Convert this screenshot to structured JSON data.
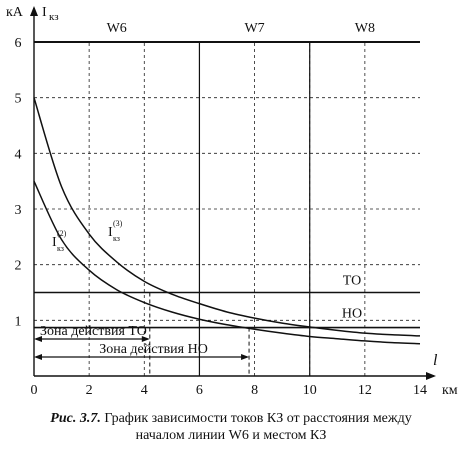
{
  "caption": {
    "figure": "Рис. 3.7.",
    "text": "График зависимости токов КЗ от расстояния между",
    "text2": "началом линии W6 и местом КЗ"
  },
  "chart_data": {
    "type": "line",
    "x_unit": "км",
    "x_symbol": "l",
    "y_unit": "кА",
    "y_symbol": "I",
    "y_symbol_sub": "кз",
    "xlim": [
      0,
      14
    ],
    "ylim": [
      0,
      6
    ],
    "xticks": [
      0,
      2,
      4,
      6,
      8,
      10,
      12,
      14
    ],
    "yticks": [
      1,
      2,
      3,
      4,
      5,
      6
    ],
    "grid": true,
    "segments": [
      {
        "name": "W6",
        "from": 0,
        "to": 6
      },
      {
        "name": "W7",
        "from": 6,
        "to": 10
      },
      {
        "name": "W8",
        "from": 10,
        "to": 14
      }
    ],
    "series": [
      {
        "name": "I",
        "name_sub": "кз",
        "name_sup": "(3)",
        "x": [
          0,
          1,
          2,
          3,
          4,
          5,
          6,
          7,
          8,
          9,
          10,
          11,
          12,
          13,
          14
        ],
        "y": [
          5.0,
          3.4,
          2.55,
          2.05,
          1.7,
          1.47,
          1.3,
          1.15,
          1.04,
          0.95,
          0.88,
          0.82,
          0.77,
          0.74,
          0.72
        ]
      },
      {
        "name": "I",
        "name_sub": "кз",
        "name_sup": "(2)",
        "x": [
          0,
          1,
          2,
          3,
          4,
          5,
          6,
          7,
          8,
          9,
          10,
          11,
          12,
          13,
          14
        ],
        "y": [
          3.5,
          2.45,
          1.9,
          1.55,
          1.32,
          1.15,
          1.02,
          0.92,
          0.84,
          0.77,
          0.71,
          0.67,
          0.63,
          0.6,
          0.58
        ]
      }
    ],
    "thresholds": [
      {
        "name": "ТО",
        "y": 1.5
      },
      {
        "name": "НО",
        "y": 0.87
      }
    ],
    "zones": [
      {
        "label": "Зона действия ТО",
        "from": 0,
        "to": 4.2
      },
      {
        "label": "Зона действия НО",
        "from": 0,
        "to": 7.8
      }
    ]
  }
}
